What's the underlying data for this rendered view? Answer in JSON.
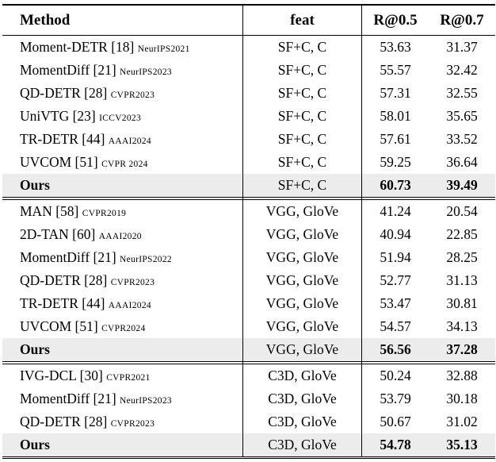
{
  "table": {
    "headers": [
      "Method",
      "feat",
      "R@0.5",
      "R@0.7"
    ],
    "highlight_color": "#ececec",
    "sections": [
      {
        "rows": [
          {
            "method": "Moment-DETR [18]",
            "venue": "NeurIPS2021",
            "feat": "SF+C, C",
            "r05": "53.63",
            "r07": "31.37",
            "ours": false
          },
          {
            "method": "MomentDiff [21]",
            "venue": "NeurIPS2023",
            "feat": "SF+C, C",
            "r05": "55.57",
            "r07": "32.42",
            "ours": false
          },
          {
            "method": "QD-DETR [28]",
            "venue": "CVPR2023",
            "feat": "SF+C, C",
            "r05": "57.31",
            "r07": "32.55",
            "ours": false
          },
          {
            "method": "UniVTG [23]",
            "venue": "ICCV2023",
            "feat": "SF+C, C",
            "r05": "58.01",
            "r07": "35.65",
            "ours": false
          },
          {
            "method": "TR-DETR [44]",
            "venue": "AAAI2024",
            "feat": "SF+C, C",
            "r05": "57.61",
            "r07": "33.52",
            "ours": false
          },
          {
            "method": "UVCOM [51]",
            "venue": "CVPR 2024",
            "feat": "SF+C, C",
            "r05": "59.25",
            "r07": "36.64",
            "ours": false
          },
          {
            "method": "Ours",
            "venue": "",
            "feat": "SF+C, C",
            "r05": "60.73",
            "r07": "39.49",
            "ours": true
          }
        ]
      },
      {
        "rows": [
          {
            "method": "MAN [58]",
            "venue": "CVPR2019",
            "feat": "VGG, GloVe",
            "r05": "41.24",
            "r07": "20.54",
            "ours": false
          },
          {
            "method": "2D-TAN [60]",
            "venue": "AAAI2020",
            "feat": "VGG, GloVe",
            "r05": "40.94",
            "r07": "22.85",
            "ours": false
          },
          {
            "method": "MomentDiff [21]",
            "venue": "NeurIPS2022",
            "feat": "VGG, GloVe",
            "r05": "51.94",
            "r07": "28.25",
            "ours": false
          },
          {
            "method": "QD-DETR [28]",
            "venue": "CVPR2023",
            "feat": "VGG, GloVe",
            "r05": "52.77",
            "r07": "31.13",
            "ours": false
          },
          {
            "method": "TR-DETR [44]",
            "venue": "AAAI2024",
            "feat": "VGG, GloVe",
            "r05": "53.47",
            "r07": "30.81",
            "ours": false
          },
          {
            "method": "UVCOM [51]",
            "venue": "CVPR2024",
            "feat": "VGG, GloVe",
            "r05": "54.57",
            "r07": "34.13",
            "ours": false
          },
          {
            "method": "Ours",
            "venue": "",
            "feat": "VGG, GloVe",
            "r05": "56.56",
            "r07": "37.28",
            "ours": true
          }
        ]
      },
      {
        "rows": [
          {
            "method": "IVG-DCL [30]",
            "venue": "CVPR2021",
            "feat": "C3D, GloVe",
            "r05": "50.24",
            "r07": "32.88",
            "ours": false
          },
          {
            "method": "MomentDiff [21]",
            "venue": "NeurIPS2023",
            "feat": "C3D, GloVe",
            "r05": "53.79",
            "r07": "30.18",
            "ours": false
          },
          {
            "method": "QD-DETR [28]",
            "venue": "CVPR2023",
            "feat": "C3D, GloVe",
            "r05": "50.67",
            "r07": "31.02",
            "ours": false
          },
          {
            "method": "Ours",
            "venue": "",
            "feat": "C3D, GloVe",
            "r05": "54.78",
            "r07": "35.13",
            "ours": true
          }
        ]
      }
    ]
  }
}
